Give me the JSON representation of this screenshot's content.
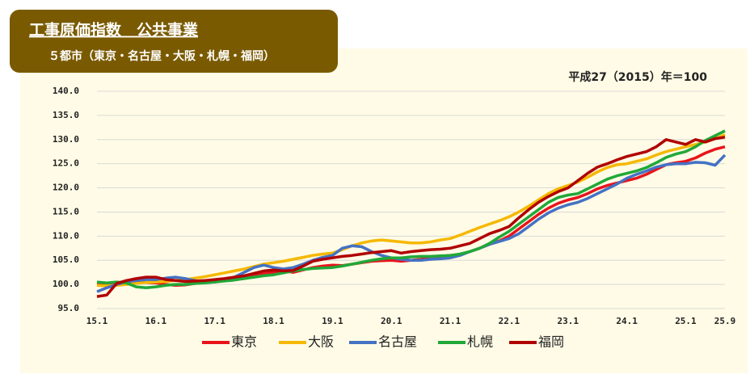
{
  "chart_data": {
    "type": "line",
    "title": "工事原価指数　公共事業",
    "subtitle": "５都市（東京・名古屋・大阪・札幌・福岡）",
    "note": "平成27（2015）年＝100",
    "categories": [
      "15.1",
      null,
      null,
      null,
      null,
      null,
      "16.1",
      null,
      null,
      null,
      null,
      null,
      "17.1",
      null,
      null,
      null,
      null,
      null,
      "18.1",
      null,
      null,
      null,
      null,
      null,
      "19.1",
      null,
      null,
      null,
      null,
      null,
      "20.1",
      null,
      null,
      null,
      null,
      null,
      "21.1",
      null,
      null,
      null,
      null,
      null,
      "22.1",
      null,
      null,
      null,
      null,
      null,
      "23.1",
      null,
      null,
      null,
      null,
      null,
      "24.1",
      null,
      null,
      null,
      null,
      null,
      "25.1",
      null,
      null,
      null,
      "25.9"
    ],
    "series": [
      {
        "name": "東京",
        "color": "#e8141c",
        "values": [
          100.0,
          100.2,
          100.3,
          100.5,
          100.6,
          100.4,
          100.3,
          100.0,
          99.8,
          99.9,
          100.2,
          100.4,
          100.6,
          101.0,
          101.2,
          101.5,
          101.8,
          102.2,
          102.5,
          102.8,
          102.5,
          103.0,
          103.5,
          103.8,
          104.0,
          103.9,
          104.2,
          104.5,
          104.8,
          104.9,
          105.0,
          104.8,
          105.0,
          105.2,
          105.5,
          105.8,
          106.0,
          106.2,
          106.8,
          107.5,
          108.3,
          109.0,
          110.0,
          111.5,
          113.0,
          114.5,
          115.8,
          116.8,
          117.5,
          118.0,
          118.8,
          119.8,
          120.5,
          121.0,
          121.5,
          122.0,
          122.8,
          123.8,
          124.8,
          125.2,
          125.5,
          126.2,
          127.2,
          128.0,
          128.5
        ]
      },
      {
        "name": "大阪",
        "color": "#f5b800",
        "values": [
          99.8,
          99.7,
          99.8,
          100.0,
          100.2,
          100.4,
          100.5,
          100.6,
          100.8,
          101.0,
          101.3,
          101.6,
          102.0,
          102.4,
          102.8,
          103.2,
          103.7,
          104.2,
          104.5,
          104.8,
          105.2,
          105.6,
          106.0,
          106.3,
          106.5,
          107.2,
          108.0,
          108.6,
          109.0,
          109.2,
          109.0,
          108.8,
          108.6,
          108.6,
          108.8,
          109.2,
          109.5,
          110.2,
          111.0,
          111.8,
          112.5,
          113.2,
          114.0,
          115.0,
          116.2,
          117.5,
          118.8,
          119.8,
          120.5,
          121.2,
          122.2,
          123.3,
          124.2,
          124.8,
          125.0,
          125.5,
          126.0,
          126.8,
          127.5,
          128.0,
          128.5,
          129.0,
          129.5,
          130.2,
          131.0
        ]
      },
      {
        "name": "名古屋",
        "color": "#4472c4",
        "values": [
          98.5,
          99.3,
          100.0,
          100.5,
          100.8,
          101.0,
          101.0,
          101.3,
          101.5,
          101.2,
          100.8,
          100.5,
          100.5,
          100.8,
          101.5,
          102.5,
          103.5,
          104.0,
          103.5,
          103.2,
          103.5,
          104.2,
          105.0,
          105.6,
          106.0,
          107.5,
          108.0,
          107.8,
          106.8,
          106.0,
          105.5,
          105.2,
          105.0,
          105.0,
          105.2,
          105.3,
          105.5,
          106.0,
          106.8,
          107.5,
          108.3,
          108.9,
          109.5,
          110.5,
          112.0,
          113.5,
          114.8,
          115.8,
          116.5,
          117.0,
          117.8,
          118.8,
          119.8,
          120.8,
          122.0,
          122.8,
          123.5,
          124.3,
          124.8,
          125.0,
          125.0,
          125.3,
          125.2,
          124.7,
          126.8
        ]
      },
      {
        "name": "札幌",
        "color": "#20a838",
        "values": [
          100.5,
          100.3,
          100.5,
          100.3,
          99.5,
          99.3,
          99.5,
          99.8,
          100.0,
          100.0,
          100.2,
          100.3,
          100.5,
          100.7,
          100.9,
          101.2,
          101.5,
          101.8,
          102.0,
          102.4,
          102.8,
          103.1,
          103.3,
          103.4,
          103.5,
          103.8,
          104.2,
          104.6,
          105.0,
          105.3,
          105.5,
          105.5,
          105.7,
          105.8,
          105.8,
          105.9,
          106.0,
          106.3,
          106.8,
          107.5,
          108.5,
          109.8,
          111.0,
          112.5,
          114.0,
          115.5,
          117.0,
          118.0,
          118.5,
          118.8,
          119.8,
          120.8,
          121.8,
          122.5,
          123.0,
          123.5,
          124.2,
          125.2,
          126.3,
          127.0,
          127.5,
          128.5,
          129.8,
          130.8,
          131.8
        ]
      },
      {
        "name": "福岡",
        "color": "#b00000",
        "values": [
          97.5,
          97.8,
          100.2,
          100.8,
          101.2,
          101.5,
          101.5,
          101.0,
          100.8,
          100.6,
          100.7,
          100.8,
          101.0,
          101.2,
          101.5,
          101.8,
          102.3,
          102.8,
          103.0,
          102.8,
          102.9,
          103.8,
          104.8,
          105.2,
          105.5,
          105.8,
          106.0,
          106.3,
          106.6,
          106.8,
          107.0,
          106.5,
          106.8,
          107.0,
          107.2,
          107.3,
          107.5,
          108.0,
          108.5,
          109.5,
          110.5,
          111.2,
          112.0,
          113.8,
          115.5,
          117.0,
          118.2,
          119.2,
          120.0,
          121.5,
          123.0,
          124.3,
          125.0,
          125.8,
          126.5,
          127.0,
          127.5,
          128.5,
          130.0,
          129.5,
          129.0,
          130.0,
          129.5,
          130.2,
          130.5
        ]
      }
    ],
    "ylim": [
      95,
      140
    ],
    "yticks": [
      {
        "value": 95,
        "label": "95.0"
      },
      {
        "value": 100,
        "label": "100.0"
      },
      {
        "value": 105,
        "label": "105.0"
      },
      {
        "value": 110,
        "label": "110.0"
      },
      {
        "value": 115,
        "label": "115.0"
      },
      {
        "value": 120,
        "label": "120.0"
      },
      {
        "value": 125,
        "label": "125.0"
      },
      {
        "value": 130,
        "label": "130.0"
      },
      {
        "value": 135,
        "label": "135.0"
      },
      {
        "value": 140,
        "label": "140.0"
      }
    ],
    "grid": true
  }
}
